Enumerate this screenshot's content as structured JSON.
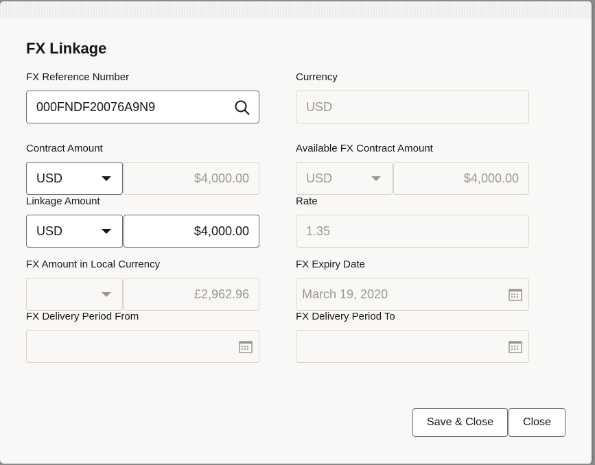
{
  "title": "FX Linkage",
  "fields": {
    "fx_ref": {
      "label": "FX Reference Number",
      "value": "000FNDF20076A9N9"
    },
    "currency": {
      "label": "Currency",
      "value": "USD"
    },
    "contract_amount": {
      "label": "Contract Amount",
      "currency": "USD",
      "value": "$4,000.00"
    },
    "available": {
      "label": "Available FX Contract Amount",
      "currency": "USD",
      "value": "$4,000.00"
    },
    "linkage": {
      "label": "Linkage Amount",
      "currency": "USD",
      "value": "$4,000.00"
    },
    "rate": {
      "label": "Rate",
      "value": "1.35"
    },
    "local": {
      "label": "FX Amount in Local Currency",
      "currency": "",
      "value": "£2,962.96"
    },
    "expiry": {
      "label": "FX Expiry Date",
      "value": "March 19, 2020"
    },
    "from": {
      "label": "FX Delivery Period From",
      "value": ""
    },
    "to": {
      "label": "FX Delivery Period To",
      "value": ""
    }
  },
  "buttons": {
    "save": "Save & Close",
    "close": "Close"
  }
}
